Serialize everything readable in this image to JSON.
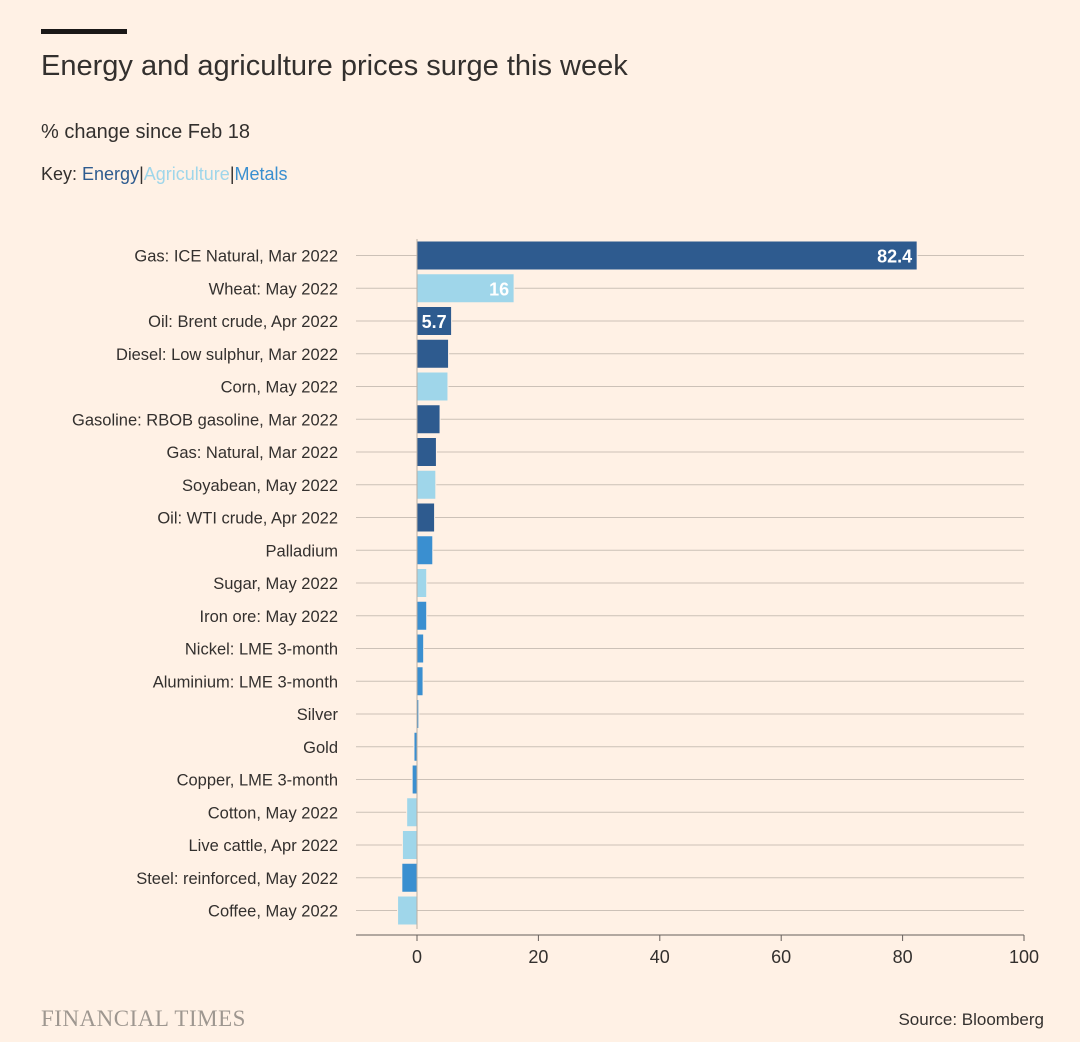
{
  "header": {
    "title": "Energy and agriculture prices surge this week",
    "subtitle": "% change since Feb 18",
    "key_prefix": "Key: ",
    "key_items": [
      {
        "label": "Energy",
        "color": "#2e5b8f"
      },
      {
        "label": "Agriculture",
        "color": "#9fd6ea"
      },
      {
        "label": "Metals",
        "color": "#3a8fd0"
      }
    ],
    "key_separator": "|"
  },
  "chart_data": {
    "type": "bar",
    "orientation": "horizontal",
    "title": "Energy and agriculture prices surge this week",
    "subtitle": "% change since Feb 18",
    "xlabel": "",
    "ylabel": "",
    "xlim": [
      -10,
      100
    ],
    "xticks": [
      0,
      20,
      40,
      60,
      80,
      100
    ],
    "grid": true,
    "colors": {
      "Energy": "#2e5b8f",
      "Agriculture": "#9fd6ea",
      "Metals": "#3a8fd0"
    },
    "bars": [
      {
        "label": "Gas: ICE Natural, Mar 2022",
        "value": 82.4,
        "group": "Energy",
        "data_label": "82.4"
      },
      {
        "label": "Wheat: May 2022",
        "value": 16,
        "group": "Agriculture",
        "data_label": "16"
      },
      {
        "label": "Oil: Brent crude, Apr 2022",
        "value": 5.7,
        "group": "Energy",
        "data_label": "5.7"
      },
      {
        "label": "Diesel: Low sulphur, Mar 2022",
        "value": 5.2,
        "group": "Energy"
      },
      {
        "label": "Corn, May 2022",
        "value": 5.1,
        "group": "Agriculture"
      },
      {
        "label": "Gasoline: RBOB gasoline, Mar 2022",
        "value": 3.8,
        "group": "Energy"
      },
      {
        "label": "Gas: Natural, Mar 2022",
        "value": 3.2,
        "group": "Energy"
      },
      {
        "label": "Soyabean, May 2022",
        "value": 3.1,
        "group": "Agriculture"
      },
      {
        "label": "Oil: WTI crude, Apr 2022",
        "value": 2.9,
        "group": "Energy"
      },
      {
        "label": "Palladium",
        "value": 2.6,
        "group": "Metals"
      },
      {
        "label": "Sugar, May 2022",
        "value": 1.6,
        "group": "Agriculture"
      },
      {
        "label": "Iron ore: May 2022",
        "value": 1.6,
        "group": "Metals"
      },
      {
        "label": "Nickel: LME 3-month",
        "value": 1.1,
        "group": "Metals"
      },
      {
        "label": "Aluminium: LME 3-month",
        "value": 1.0,
        "group": "Metals"
      },
      {
        "label": "Silver",
        "value": 0.3,
        "group": "Metals"
      },
      {
        "label": "Gold",
        "value": -0.5,
        "group": "Metals"
      },
      {
        "label": "Copper, LME 3-month",
        "value": -0.8,
        "group": "Metals"
      },
      {
        "label": "Cotton, May 2022",
        "value": -1.7,
        "group": "Agriculture"
      },
      {
        "label": "Live cattle, Apr 2022",
        "value": -2.4,
        "group": "Agriculture"
      },
      {
        "label": "Steel: reinforced, May 2022",
        "value": -2.5,
        "group": "Metals"
      },
      {
        "label": "Coffee, May 2022",
        "value": -3.2,
        "group": "Agriculture"
      }
    ]
  },
  "footer": {
    "brand": "FINANCIAL TIMES",
    "source": "Source: Bloomberg"
  }
}
